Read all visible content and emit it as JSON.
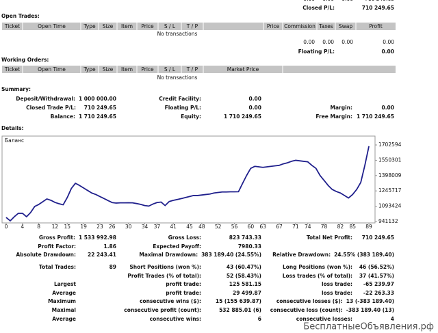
{
  "top": {
    "partial_row": [
      "0.00",
      "0.00",
      "0.00",
      "710 249.65"
    ],
    "closed_pl_label": "Closed P/L:",
    "closed_pl": "710 249.65"
  },
  "open_trades": {
    "title": "Open Trades:",
    "headers": [
      "Ticket",
      "Open Time",
      "Type",
      "Size",
      "Item",
      "Price",
      "S / L",
      "T / P",
      "Price",
      "Commission",
      "Taxes",
      "Swap",
      "Profit"
    ],
    "empty": "No transactions",
    "totals": [
      "0.00",
      "0.00",
      "0.00",
      "0.00"
    ],
    "floating_pl_label": "Floating P/L:",
    "floating_pl": "0.00"
  },
  "working_orders": {
    "title": "Working Orders:",
    "headers": [
      "Ticket",
      "Open Time",
      "Type",
      "Size",
      "Item",
      "Price",
      "S / L",
      "T / P",
      "Market Price"
    ],
    "empty": "No transactions"
  },
  "summary": {
    "title": "Summary:",
    "rows": [
      {
        "left": [
          "Deposit/Withdrawal:",
          "1 000 000.00"
        ],
        "center": [
          "Credit Facility:",
          "0.00"
        ]
      },
      {
        "left": [
          "Closed Trade P/L:",
          "710 249.65"
        ],
        "center": [
          "Floating P/L:",
          "0.00"
        ],
        "right": [
          "Margin:",
          "0.00"
        ]
      },
      {
        "left": [
          "Balance:",
          "1 710 249.65"
        ],
        "center": [
          "Equity:",
          "1 710 249.65"
        ],
        "right": [
          "Free Margin:",
          "1 710 249.65"
        ]
      }
    ]
  },
  "details": {
    "title": "Details:"
  },
  "chart_data": {
    "type": "line",
    "series": [
      {
        "name": "Баланс",
        "color": "#1f1f8c",
        "values": [
          982000,
          948000,
          989000,
          1023000,
          1023000,
          989000,
          1030000,
          1091000,
          1111000,
          1138000,
          1166000,
          1152000,
          1131000,
          1118000,
          1108000,
          1180000,
          1270000,
          1322000,
          1300000,
          1275000,
          1250000,
          1225000,
          1210000,
          1190000,
          1170000,
          1150000,
          1130000,
          1125000,
          1127000,
          1127000,
          1128000,
          1127000,
          1120000,
          1112000,
          1100000,
          1095000,
          1115000,
          1130000,
          1135000,
          1100000,
          1140000,
          1152000,
          1160000,
          1170000,
          1180000,
          1190000,
          1200000,
          1200000,
          1205000,
          1210000,
          1215000,
          1225000,
          1230000,
          1235000,
          1235000,
          1237000,
          1237000,
          1238000,
          1320000,
          1400000,
          1470000,
          1490000,
          1485000,
          1480000,
          1485000,
          1490000,
          1495000,
          1500000,
          1515000,
          1525000,
          1540000,
          1550000,
          1545000,
          1540000,
          1535000,
          1500000,
          1470000,
          1400000,
          1350000,
          1300000,
          1260000,
          1240000,
          1225000,
          1200000,
          1175000,
          1210000,
          1260000,
          1330000,
          1500000,
          1690000
        ]
      }
    ],
    "x": [
      0,
      1,
      2,
      3,
      4,
      5,
      6,
      7,
      8,
      9,
      10,
      11,
      12,
      13,
      14,
      15,
      16,
      17,
      18,
      19,
      20,
      21,
      22,
      23,
      24,
      25,
      26,
      27,
      28,
      29,
      30,
      31,
      32,
      33,
      34,
      35,
      36,
      37,
      38,
      39,
      40,
      41,
      42,
      43,
      44,
      45,
      46,
      47,
      48,
      49,
      50,
      51,
      52,
      53,
      54,
      55,
      56,
      57,
      58,
      59,
      60,
      61,
      62,
      63,
      64,
      65,
      66,
      67,
      68,
      69,
      70,
      71,
      72,
      73,
      74,
      75,
      76,
      77,
      78,
      79,
      80,
      81,
      82,
      83,
      84,
      85,
      86,
      87,
      88,
      89
    ],
    "xlim": [
      -1,
      90.5
    ],
    "ylim": [
      927530,
      1791000
    ],
    "xticks": [
      0,
      4,
      8,
      12,
      15,
      19,
      23,
      26,
      30,
      34,
      37,
      41,
      45,
      48,
      52,
      56,
      60,
      63,
      67,
      71,
      74,
      78,
      82,
      85,
      89
    ],
    "yticks": [
      941132,
      1093424,
      1245717,
      1398009,
      1550301,
      1702594
    ]
  },
  "stats": {
    "rows": [
      {
        "left": [
          "Gross Profit:",
          "1 533 992.98"
        ],
        "center": [
          "Gross Loss:",
          "823 743.33"
        ],
        "right": [
          "Total Net Profit:",
          "710 249.65"
        ]
      },
      {
        "left": [
          "Profit Factor:",
          "1.86"
        ],
        "center": [
          "Expected Payoff:",
          "7980.33"
        ]
      },
      {
        "left": [
          "Absolute Drawdown:",
          "22 243.41"
        ],
        "center": [
          "Maximal Drawdown:",
          "383 189.40 (24.55%)"
        ],
        "right": [
          "Relative Drawdown:",
          "24.55% (383 189.40)"
        ]
      },
      {
        "left": [
          "Total Trades:",
          "89"
        ],
        "center": [
          "Short Positions (won %):",
          "43 (60.47%)"
        ],
        "right": [
          "Long Positions (won %):",
          "46 (56.52%)"
        ]
      },
      {
        "center": [
          "Profit Trades (% of total):",
          "52 (58.43%)"
        ],
        "right": [
          "Loss trades (% of total):",
          "37 (41.57%)"
        ]
      },
      {
        "left": [
          "Largest"
        ],
        "center": [
          "profit trade:",
          "125 581.15"
        ],
        "right": [
          "loss trade:",
          "-65 239.97"
        ]
      },
      {
        "left": [
          "Average"
        ],
        "center": [
          "profit trade:",
          "29 499.87"
        ],
        "right": [
          "loss trade:",
          "-22 263.33"
        ]
      },
      {
        "left": [
          "Maximum"
        ],
        "center": [
          "consecutive wins ($):",
          "15 (155 639.87)"
        ],
        "right": [
          "consecutive losses ($):",
          "13 (-383 189.40)"
        ]
      },
      {
        "left": [
          "Maximal"
        ],
        "center": [
          "consecutive profit (count):",
          "532 885.01 (6)"
        ],
        "right": [
          "consecutive loss (count):",
          "-383 189.40 (13)"
        ]
      },
      {
        "left": [
          "Average"
        ],
        "center": [
          "consecutive wins:",
          "6"
        ],
        "right": [
          "consecutive losses:",
          "4"
        ]
      }
    ]
  },
  "watermark": "БесплатныеОбъявления.рф"
}
